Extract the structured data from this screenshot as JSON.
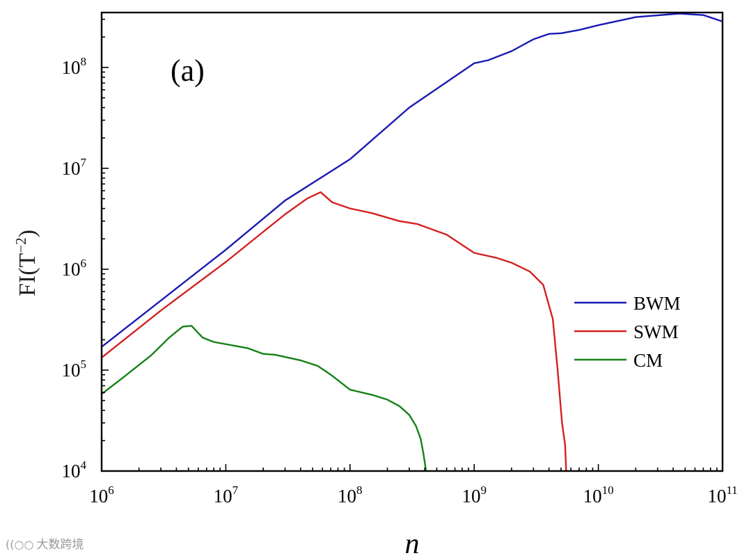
{
  "chart_data": {
    "type": "line",
    "panel_label": "(a)",
    "xlabel": "n",
    "ylabel": "FI(T",
    "ylabel_exponent": "−2",
    "ylabel_suffix": ")",
    "xscale": "log",
    "yscale": "log",
    "xlim": [
      1000000,
      100000000000
    ],
    "ylim": [
      10000,
      350000000
    ],
    "x_ticks": [
      {
        "base": "10",
        "exp": "6"
      },
      {
        "base": "10",
        "exp": "7"
      },
      {
        "base": "10",
        "exp": "8"
      },
      {
        "base": "10",
        "exp": "9"
      },
      {
        "base": "10",
        "exp": "10"
      },
      {
        "base": "10",
        "exp": "11"
      }
    ],
    "y_ticks": [
      {
        "base": "10",
        "exp": "4"
      },
      {
        "base": "10",
        "exp": "5"
      },
      {
        "base": "10",
        "exp": "6"
      },
      {
        "base": "10",
        "exp": "7"
      },
      {
        "base": "10",
        "exp": "8"
      }
    ],
    "legend_position": "right",
    "series": [
      {
        "name": "BWM",
        "color": "#1a1ab4",
        "points": [
          [
            1000000,
            170000
          ],
          [
            3000000,
            490000
          ],
          [
            10000000,
            1560000
          ],
          [
            30000000,
            4800000
          ],
          [
            100000000,
            12300000
          ],
          [
            300000000,
            40000000
          ],
          [
            1000000000,
            110000000
          ],
          [
            1300000000,
            118000000
          ],
          [
            2000000000,
            145000000
          ],
          [
            3000000000,
            190000000
          ],
          [
            4000000000,
            215000000
          ],
          [
            5000000000,
            218000000
          ],
          [
            7000000000,
            235000000
          ],
          [
            10000000000,
            262000000
          ],
          [
            20000000000,
            315000000
          ],
          [
            45000000000,
            342000000
          ],
          [
            70000000000,
            330000000
          ],
          [
            100000000000,
            285000000
          ]
        ]
      },
      {
        "name": "SWM",
        "color": "#d42020",
        "points": [
          [
            1000000,
            133000
          ],
          [
            3000000,
            390000
          ],
          [
            10000000,
            1180000
          ],
          [
            30000000,
            3500000
          ],
          [
            45000000,
            5000000
          ],
          [
            58000000,
            5800000
          ],
          [
            72000000,
            4600000
          ],
          [
            100000000,
            4000000
          ],
          [
            150000000,
            3600000
          ],
          [
            250000000,
            3000000
          ],
          [
            350000000,
            2800000
          ],
          [
            600000000,
            2200000
          ],
          [
            1000000000,
            1450000
          ],
          [
            1500000000,
            1300000
          ],
          [
            2000000000,
            1160000
          ],
          [
            2800000000,
            950000
          ],
          [
            3600000000,
            700000
          ],
          [
            4300000000,
            320000
          ],
          [
            4700000000,
            100000
          ],
          [
            5100000000,
            30000
          ],
          [
            5400000000,
            18000
          ],
          [
            5500000000,
            10000
          ]
        ]
      },
      {
        "name": "CM",
        "color": "#158015",
        "points": [
          [
            1000000,
            58000
          ],
          [
            1500000,
            85000
          ],
          [
            2500000,
            140000
          ],
          [
            3500000,
            210000
          ],
          [
            4500000,
            270000
          ],
          [
            5300000,
            275000
          ],
          [
            6500000,
            210000
          ],
          [
            8000000,
            190000
          ],
          [
            15000000,
            165000
          ],
          [
            20000000,
            145000
          ],
          [
            25000000,
            142000
          ],
          [
            40000000,
            125000
          ],
          [
            55000000,
            110000
          ],
          [
            70000000,
            90000
          ],
          [
            100000000,
            64000
          ],
          [
            150000000,
            57000
          ],
          [
            200000000,
            51000
          ],
          [
            250000000,
            44000
          ],
          [
            300000000,
            36000
          ],
          [
            340000000,
            28000
          ],
          [
            370000000,
            21000
          ],
          [
            390000000,
            15000
          ],
          [
            410000000,
            10000
          ]
        ]
      }
    ]
  },
  "watermark": {
    "icon": "((○○",
    "text": "大数跨境"
  }
}
